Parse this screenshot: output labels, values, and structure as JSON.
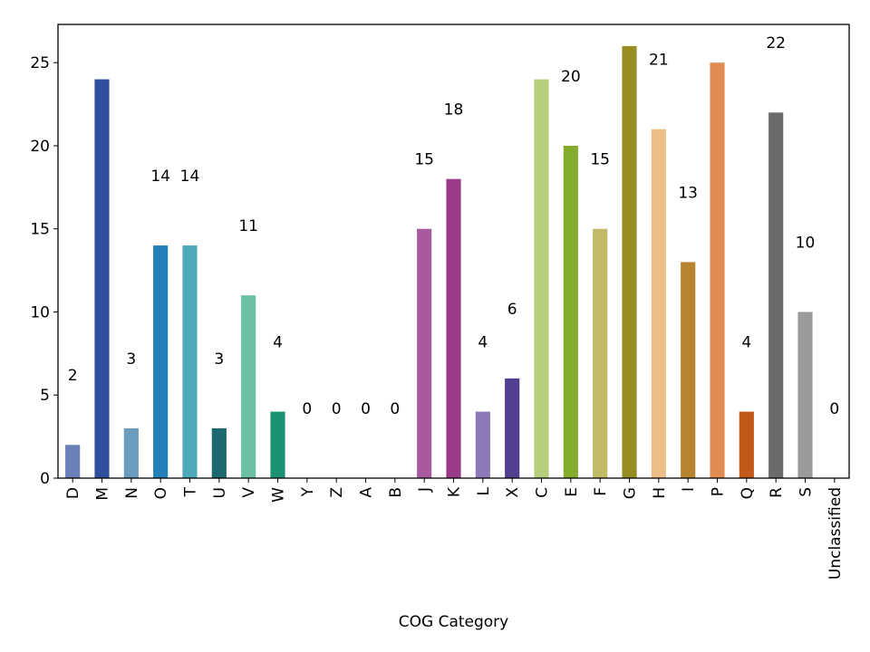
{
  "chart_data": {
    "type": "bar",
    "title": "",
    "xlabel": "COG Category",
    "ylabel": "",
    "ylim": [
      0,
      27.3
    ],
    "yticks": [
      0,
      5,
      10,
      15,
      20,
      25
    ],
    "grid": false,
    "legend": "none",
    "categories": [
      "D",
      "M",
      "N",
      "O",
      "T",
      "U",
      "V",
      "W",
      "Y",
      "Z",
      "A",
      "B",
      "J",
      "K",
      "L",
      "X",
      "C",
      "E",
      "F",
      "G",
      "H",
      "I",
      "P",
      "Q",
      "R",
      "S",
      "Unclassified"
    ],
    "values": [
      2,
      24,
      3,
      14,
      14,
      3,
      11,
      4,
      0,
      0,
      0,
      0,
      15,
      18,
      4,
      6,
      24,
      20,
      15,
      26,
      21,
      13,
      25,
      4,
      22,
      10,
      0
    ],
    "labels": [
      "2",
      "",
      "3",
      "14",
      "14",
      "3",
      "11",
      "4",
      "0",
      "0",
      "0",
      "0",
      "15",
      "18",
      "4",
      "6",
      "",
      "20",
      "15",
      "",
      "21",
      "13",
      "",
      "4",
      "22",
      "10",
      "0"
    ],
    "colors": [
      "#6b7fb8",
      "#2f4e9e",
      "#6b9bbd",
      "#2181b8",
      "#4ea9bb",
      "#1d6970",
      "#6cc0a4",
      "#1b9372",
      "#cccccc",
      "#cccccc",
      "#cccccc",
      "#cccccc",
      "#a85aa0",
      "#9c3a8a",
      "#8e79b8",
      "#523f92",
      "#b6cf7a",
      "#83ab2c",
      "#c1ba66",
      "#968c21",
      "#ebbf86",
      "#b8852e",
      "#e08b52",
      "#c35919",
      "#6b6b6b",
      "#9a9a9a",
      "#cccccc"
    ]
  }
}
